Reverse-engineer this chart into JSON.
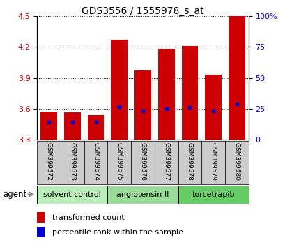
{
  "title": "GDS3556 / 1555978_s_at",
  "samples": [
    "GSM399572",
    "GSM399573",
    "GSM399574",
    "GSM399575",
    "GSM399576",
    "GSM399577",
    "GSM399578",
    "GSM399579",
    "GSM399580"
  ],
  "bar_bottom": 3.3,
  "bar_tops": [
    3.57,
    3.565,
    3.535,
    4.27,
    3.97,
    4.18,
    4.21,
    3.93,
    4.5
  ],
  "percentile_values": [
    3.47,
    3.47,
    3.47,
    3.62,
    3.575,
    3.6,
    3.61,
    3.575,
    3.645
  ],
  "bar_color": "#cc0000",
  "percentile_color": "#0000cc",
  "ylim_left": [
    3.3,
    4.5
  ],
  "ylim_right": [
    0,
    100
  ],
  "yticks_left": [
    3.3,
    3.6,
    3.9,
    4.2,
    4.5
  ],
  "yticks_right": [
    0,
    25,
    50,
    75,
    100
  ],
  "groups": [
    {
      "label": "solvent control",
      "indices": [
        0,
        1,
        2
      ],
      "color": "#bbeebb"
    },
    {
      "label": "angiotensin II",
      "indices": [
        3,
        4,
        5
      ],
      "color": "#99dd99"
    },
    {
      "label": "torcetrapib",
      "indices": [
        6,
        7,
        8
      ],
      "color": "#66cc66"
    }
  ],
  "agent_label": "agent",
  "legend_bar": "transformed count",
  "legend_pct": "percentile rank within the sample",
  "background_color": "#ffffff",
  "tick_label_color_left": "#cc0000",
  "tick_label_color_right": "#0000cc",
  "bar_width": 0.7,
  "sample_box_color": "#cccccc"
}
